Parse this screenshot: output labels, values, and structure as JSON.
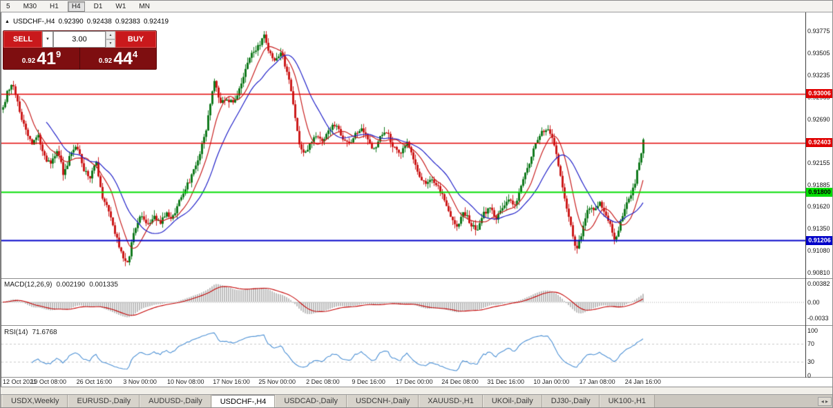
{
  "toolbar": {
    "timeframes": [
      {
        "label": "5",
        "active": false
      },
      {
        "label": "M30",
        "active": false
      },
      {
        "label": "H1",
        "active": false
      },
      {
        "label": "H4",
        "active": true
      },
      {
        "label": "D1",
        "active": false
      },
      {
        "label": "W1",
        "active": false
      },
      {
        "label": "MN",
        "active": false
      }
    ]
  },
  "chart": {
    "quote_header": {
      "marker": "▲",
      "symbol": "USDCHF-,H4",
      "open": "0.92390",
      "high": "0.92438",
      "low": "0.92383",
      "close": "0.92419"
    },
    "trade_panel": {
      "sell_label": "SELL",
      "buy_label": "BUY",
      "volume": "3.00",
      "dropdown_icon": "▼",
      "spin_up": "▲",
      "spin_down": "▼",
      "bid": {
        "prefix": "0.92",
        "big": "41",
        "sup": "9"
      },
      "ask": {
        "prefix": "0.92",
        "big": "44",
        "sup": "4"
      }
    },
    "price_scale": {
      "labels": [
        {
          "text": "0.93775",
          "value": 0.93775
        },
        {
          "text": "0.93505",
          "value": 0.93505
        },
        {
          "text": "0.93235",
          "value": 0.93235
        },
        {
          "text": "0.92965",
          "value": 0.92965
        },
        {
          "text": "0.92690",
          "value": 0.9269
        },
        {
          "text": "0.92420",
          "value": 0.9242
        },
        {
          "text": "0.92155",
          "value": 0.92155
        },
        {
          "text": "0.91885",
          "value": 0.91885
        },
        {
          "text": "0.91620",
          "value": 0.9162
        },
        {
          "text": "0.91350",
          "value": 0.9135
        },
        {
          "text": "0.91080",
          "value": 0.9108
        },
        {
          "text": "0.90810",
          "value": 0.9081
        }
      ]
    },
    "hlines": [
      {
        "text": "0.93006",
        "value": 0.93006,
        "color": "#e00000",
        "text_color": "#ffffff",
        "width": 1.4
      },
      {
        "text": "0.92403",
        "value": 0.92403,
        "color": "#e00000",
        "text_color": "#ffffff",
        "width": 1.4
      },
      {
        "text": "0.91800",
        "value": 0.918,
        "color": "#00dd00",
        "text_color": "#000000",
        "width": 2
      },
      {
        "text": "0.91206",
        "value": 0.91206,
        "color": "#0000c8",
        "text_color": "#ffffff",
        "width": 2
      }
    ],
    "x_labels": [
      "12 Oct 2021",
      "19 Oct 08:00",
      "26 Oct 16:00",
      "3 Nov 00:00",
      "10 Nov 08:00",
      "17 Nov 16:00",
      "25 Nov 00:00",
      "2 Dec 08:00",
      "9 Dec 16:00",
      "17 Dec 00:00",
      "24 Dec 08:00",
      "31 Dec 16:00",
      "10 Jan 00:00",
      "17 Jan 08:00",
      "24 Jan 16:00"
    ],
    "macd_panel": {
      "name": "MACD(12,26,9)",
      "value_main": "0.002190",
      "value_signal": "0.001335",
      "scale": [
        {
          "text": "0.00382",
          "value": 0.00382
        },
        {
          "text": "0.00",
          "value": 0
        },
        {
          "text": "-0.0033",
          "value": -0.0033
        }
      ]
    },
    "rsi_panel": {
      "name": "RSI(14)",
      "value": "71.6768",
      "scale": [
        {
          "text": "100",
          "value": 100
        },
        {
          "text": "70",
          "value": 70
        },
        {
          "text": "30",
          "value": 30
        },
        {
          "text": "0",
          "value": 0
        }
      ],
      "levels": [
        70,
        30
      ]
    }
  },
  "chart_data": {
    "type": "candlestick",
    "symbol": "USDCHF-",
    "timeframe": "H4",
    "price_range": [
      0.9081,
      0.93775
    ],
    "current_bar": {
      "open": 0.9239,
      "high": 0.92438,
      "low": 0.92383,
      "close": 0.92419
    },
    "bid": 0.92419,
    "ask": 0.92444,
    "path": {
      "t": [
        0.0,
        0.008,
        0.015,
        0.025,
        0.035,
        0.045,
        0.055,
        0.065,
        0.075,
        0.085,
        0.095,
        0.105,
        0.115,
        0.125,
        0.135,
        0.145,
        0.155,
        0.165,
        0.175,
        0.185,
        0.195,
        0.205,
        0.215,
        0.225,
        0.235,
        0.245,
        0.255,
        0.265,
        0.275,
        0.285,
        0.295,
        0.305,
        0.315,
        0.325,
        0.33,
        0.34,
        0.35,
        0.36,
        0.37,
        0.38,
        0.39,
        0.4,
        0.408,
        0.415,
        0.425,
        0.435,
        0.445,
        0.455,
        0.462,
        0.47,
        0.48,
        0.49,
        0.5,
        0.51,
        0.52,
        0.53,
        0.54,
        0.55,
        0.56,
        0.57,
        0.58,
        0.59,
        0.6,
        0.61,
        0.62,
        0.63,
        0.64,
        0.65,
        0.66,
        0.67,
        0.68,
        0.69,
        0.7,
        0.71,
        0.72,
        0.73,
        0.74,
        0.75,
        0.76,
        0.77,
        0.78,
        0.79,
        0.8,
        0.81,
        0.82,
        0.83,
        0.84,
        0.85,
        0.858,
        0.865,
        0.872,
        0.88,
        0.888,
        0.895,
        0.902,
        0.91,
        0.918,
        0.925,
        0.932,
        0.94,
        0.948,
        0.955,
        0.962,
        0.97,
        0.978,
        0.985,
        0.992,
        1.0
      ],
      "close": [
        0.9285,
        0.9305,
        0.9315,
        0.9282,
        0.9255,
        0.924,
        0.9248,
        0.9222,
        0.9215,
        0.9232,
        0.92,
        0.9228,
        0.9238,
        0.921,
        0.9195,
        0.9218,
        0.9175,
        0.9155,
        0.913,
        0.9105,
        0.909,
        0.9135,
        0.915,
        0.9138,
        0.9152,
        0.9142,
        0.9155,
        0.9148,
        0.917,
        0.9185,
        0.92,
        0.9222,
        0.9248,
        0.9295,
        0.9318,
        0.9288,
        0.9295,
        0.9288,
        0.931,
        0.9335,
        0.9352,
        0.936,
        0.9374,
        0.9352,
        0.9342,
        0.9352,
        0.9322,
        0.9282,
        0.9238,
        0.9225,
        0.9242,
        0.9248,
        0.9242,
        0.9258,
        0.9262,
        0.9248,
        0.9238,
        0.9252,
        0.9258,
        0.9242,
        0.9232,
        0.9248,
        0.9252,
        0.9235,
        0.9228,
        0.9242,
        0.9225,
        0.92,
        0.9188,
        0.9196,
        0.9185,
        0.9168,
        0.9148,
        0.9138,
        0.9155,
        0.9142,
        0.9132,
        0.9152,
        0.9162,
        0.9148,
        0.9158,
        0.9172,
        0.9165,
        0.919,
        0.9212,
        0.9235,
        0.9252,
        0.926,
        0.9248,
        0.9222,
        0.9195,
        0.9162,
        0.9132,
        0.9108,
        0.9125,
        0.9152,
        0.9162,
        0.9158,
        0.9168,
        0.9155,
        0.9142,
        0.9118,
        0.9135,
        0.9158,
        0.9172,
        0.9185,
        0.9212,
        0.9242
      ]
    },
    "overlays": [
      {
        "name": "ma-fast",
        "type": "sma",
        "period": 10,
        "color": "#c81e1e"
      },
      {
        "name": "ma-slow",
        "type": "sma",
        "period": 22,
        "color": "#1e1ec8"
      }
    ],
    "hlines": [
      0.93006,
      0.92403,
      0.918,
      0.91206
    ],
    "indicators": [
      {
        "name": "MACD",
        "params": [
          12,
          26,
          9
        ],
        "current": [
          0.00219,
          0.001335
        ],
        "range": [
          -0.0033,
          0.00382
        ]
      },
      {
        "name": "RSI",
        "params": [
          14
        ],
        "current": 71.6768,
        "range": [
          0,
          100
        ],
        "levels": [
          70,
          30
        ]
      }
    ]
  },
  "tabs": {
    "items": [
      {
        "label": "USDX,Weekly",
        "active": false
      },
      {
        "label": "EURUSD-,Daily",
        "active": false
      },
      {
        "label": "AUDUSD-,Daily",
        "active": false
      },
      {
        "label": "USDCHF-,H4",
        "active": true
      },
      {
        "label": "USDCAD-,Daily",
        "active": false
      },
      {
        "label": "USDCNH-,Daily",
        "active": false
      },
      {
        "label": "XAUUSD-,H1",
        "active": false
      },
      {
        "label": "UKOil-,Daily",
        "active": false
      },
      {
        "label": "DJ30-,Daily",
        "active": false
      },
      {
        "label": "UK100-,H1",
        "active": false
      }
    ],
    "scroll_icon": "◂ ▸"
  }
}
